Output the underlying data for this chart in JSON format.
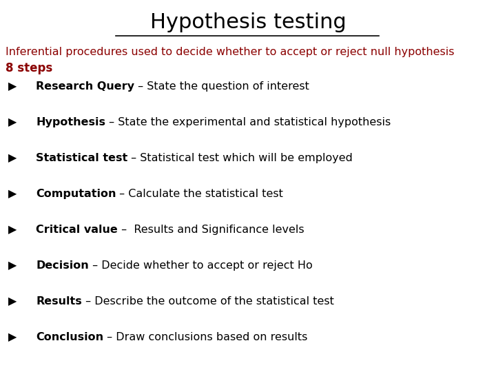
{
  "title": "Hypothesis testing",
  "title_fontsize": 22,
  "title_color": "#000000",
  "subtitle": "Inferential procedures used to decide whether to accept or reject null hypothesis",
  "subtitle_color": "#8B0000",
  "subtitle_fontsize": 11.5,
  "steps_label": "8 steps",
  "steps_label_color": "#8B0000",
  "steps_label_fontsize": 12,
  "background_color": "#ffffff",
  "bullet": "▷",
  "items": [
    {
      "bold": "Research Query",
      "rest": " – State the question of interest"
    },
    {
      "bold": "Hypothesis",
      "rest": " – State the experimental and statistical hypothesis"
    },
    {
      "bold": "Statistical test",
      "rest": " – Statistical test which will be employed"
    },
    {
      "bold": "Computation",
      "rest": " – Calculate the statistical test"
    },
    {
      "bold": "Critical value",
      "rest": " –  Results and Significance levels"
    },
    {
      "bold": "Decision",
      "rest": " – Decide whether to accept or reject Ho"
    },
    {
      "bold": "Results",
      "rest": " – Describe the outcome of the statistical test"
    },
    {
      "bold": "Conclusion",
      "rest": " – Draw conclusions based on results"
    }
  ],
  "item_fontsize": 11.5,
  "item_bold_color": "#000000",
  "item_rest_color": "#000000",
  "line_color": "#000000"
}
